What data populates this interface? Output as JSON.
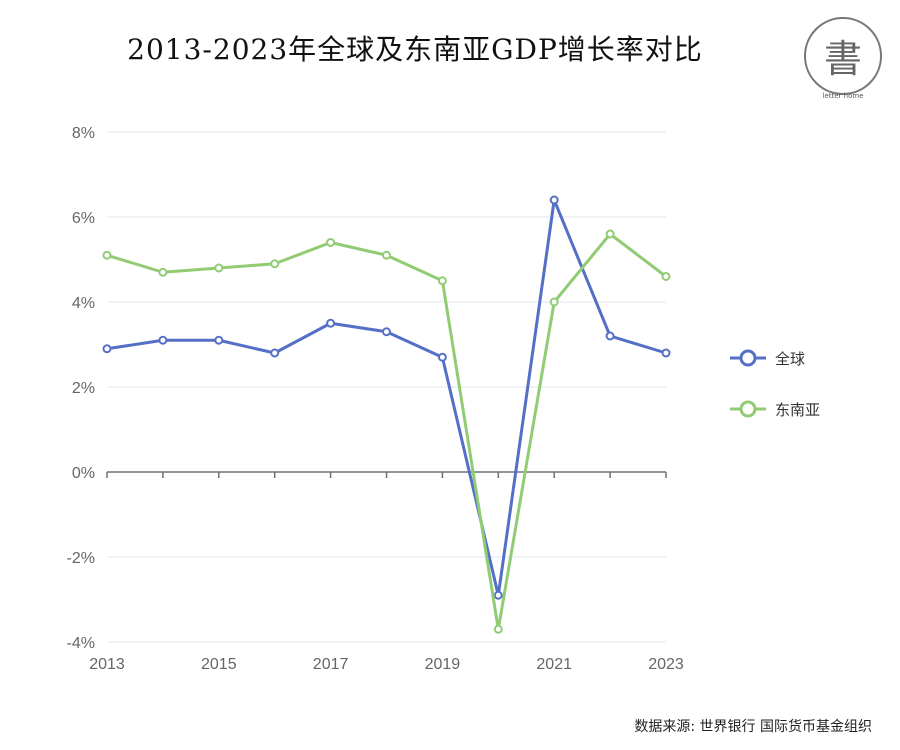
{
  "chart_data": {
    "type": "line",
    "title": "2013-2023年全球及东南亚GDP增长率对比",
    "x": [
      2013,
      2014,
      2015,
      2016,
      2017,
      2018,
      2019,
      2020,
      2021,
      2022,
      2023
    ],
    "x_tick_labels": [
      "2013",
      "2015",
      "2017",
      "2019",
      "2021",
      "2023"
    ],
    "y_tick_labels": [
      "-4%",
      "-2%",
      "0%",
      "2%",
      "4%",
      "6%",
      "8%"
    ],
    "ylim": [
      -4,
      8
    ],
    "y_unit": "%",
    "grid": true,
    "legend_position": "right",
    "series": [
      {
        "name": "全球",
        "color": "#5470c6",
        "values": [
          2.9,
          3.1,
          3.1,
          2.8,
          3.5,
          3.3,
          2.7,
          -2.9,
          6.4,
          3.2,
          2.8
        ]
      },
      {
        "name": "东南亚",
        "color": "#91cc75",
        "values": [
          5.1,
          4.7,
          4.8,
          4.9,
          5.4,
          5.1,
          4.5,
          -3.7,
          4.0,
          5.6,
          4.6
        ]
      }
    ]
  },
  "source": "数据来源: 世界银行  国际货币基金组织",
  "logo": {
    "glyph": "書",
    "text": "letter home"
  }
}
